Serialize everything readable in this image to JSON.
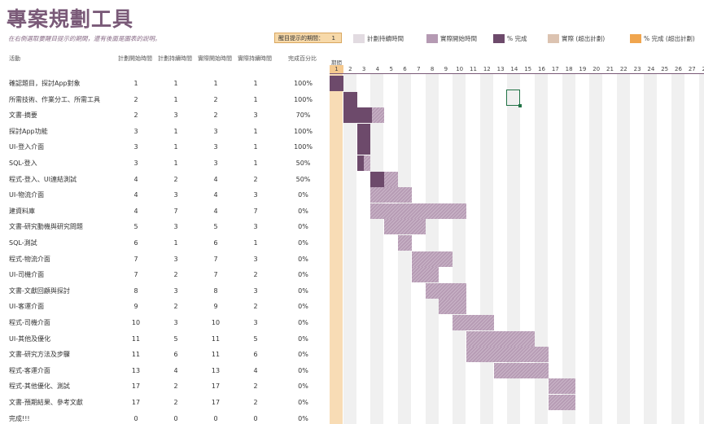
{
  "title": "專案規劃工具",
  "subtitle": "在右側選取要醒目提示的期間，還有後面是圖表的說明。",
  "period_highlight": {
    "label": "醒目提示的期間：",
    "value": "1"
  },
  "legend": [
    {
      "label": "計劃持續時間",
      "color": "#e2dbe1"
    },
    {
      "label": "實際開始時間",
      "color": "#b59ab3"
    },
    {
      "label": "% 完成",
      "color": "#6d4a6b"
    },
    {
      "label": "實際 (超出計劃)",
      "color": "#dcc3b1"
    },
    {
      "label": "% 完成 (超出計劃)",
      "color": "#f0a54e"
    }
  ],
  "columns": {
    "activity": "活動",
    "plan_start": "計劃開始時間",
    "plan_duration": "計劃持續時間",
    "actual_start": "實際開始時間",
    "actual_duration": "實際持續時間",
    "percent": "完成百分比",
    "periods": "期間"
  },
  "days": [
    "1",
    "2",
    "3",
    "4",
    "5",
    "6",
    "7",
    "8",
    "9",
    "10",
    "11",
    "12",
    "13",
    "14",
    "15",
    "16",
    "17",
    "18",
    "19",
    "20",
    "21",
    "22",
    "23",
    "24",
    "25",
    "26",
    "27",
    "28"
  ],
  "current_period": 1,
  "rows": [
    {
      "name": "確認題目，探討App對象",
      "plan_start": "1",
      "plan_duration": "1",
      "actual_start": "1",
      "actual_duration": "1",
      "percent": "100%",
      "pct_value": 1.0
    },
    {
      "name": "所需技術、作業分工、所需工具",
      "plan_start": "2",
      "plan_duration": "1",
      "actual_start": "2",
      "actual_duration": "1",
      "percent": "100%",
      "pct_value": 1.0
    },
    {
      "name": "文書-摘要",
      "plan_start": "2",
      "plan_duration": "3",
      "actual_start": "2",
      "actual_duration": "3",
      "percent": "70%",
      "pct_value": 0.7
    },
    {
      "name": "探討App功能",
      "plan_start": "3",
      "plan_duration": "1",
      "actual_start": "3",
      "actual_duration": "1",
      "percent": "100%",
      "pct_value": 1.0
    },
    {
      "name": "UI-登入介面",
      "plan_start": "3",
      "plan_duration": "1",
      "actual_start": "3",
      "actual_duration": "1",
      "percent": "100%",
      "pct_value": 1.0
    },
    {
      "name": "SQL-登入",
      "plan_start": "3",
      "plan_duration": "1",
      "actual_start": "3",
      "actual_duration": "1",
      "percent": "50%",
      "pct_value": 0.5
    },
    {
      "name": "程式-登入、UI連結測試",
      "plan_start": "4",
      "plan_duration": "2",
      "actual_start": "4",
      "actual_duration": "2",
      "percent": "50%",
      "pct_value": 0.5
    },
    {
      "name": "UI-物流介面",
      "plan_start": "4",
      "plan_duration": "3",
      "actual_start": "4",
      "actual_duration": "3",
      "percent": "0%",
      "pct_value": 0
    },
    {
      "name": "建資料庫",
      "plan_start": "4",
      "plan_duration": "7",
      "actual_start": "4",
      "actual_duration": "7",
      "percent": "0%",
      "pct_value": 0
    },
    {
      "name": "文書-研究動機與研究問題",
      "plan_start": "5",
      "plan_duration": "3",
      "actual_start": "5",
      "actual_duration": "3",
      "percent": "0%",
      "pct_value": 0
    },
    {
      "name": "SQL-測試",
      "plan_start": "6",
      "plan_duration": "1",
      "actual_start": "6",
      "actual_duration": "1",
      "percent": "0%",
      "pct_value": 0
    },
    {
      "name": "程式-物流介面",
      "plan_start": "7",
      "plan_duration": "3",
      "actual_start": "7",
      "actual_duration": "3",
      "percent": "0%",
      "pct_value": 0
    },
    {
      "name": "UI-司機介面",
      "plan_start": "7",
      "plan_duration": "2",
      "actual_start": "7",
      "actual_duration": "2",
      "percent": "0%",
      "pct_value": 0
    },
    {
      "name": "文書-文獻回顧與探討",
      "plan_start": "8",
      "plan_duration": "3",
      "actual_start": "8",
      "actual_duration": "3",
      "percent": "0%",
      "pct_value": 0
    },
    {
      "name": "UI-客運介面",
      "plan_start": "9",
      "plan_duration": "2",
      "actual_start": "9",
      "actual_duration": "2",
      "percent": "0%",
      "pct_value": 0
    },
    {
      "name": "程式-司機介面",
      "plan_start": "10",
      "plan_duration": "3",
      "actual_start": "10",
      "actual_duration": "3",
      "percent": "0%",
      "pct_value": 0
    },
    {
      "name": "UI-其他及優化",
      "plan_start": "11",
      "plan_duration": "5",
      "actual_start": "11",
      "actual_duration": "5",
      "percent": "0%",
      "pct_value": 0
    },
    {
      "name": "文書-研究方法及步驟",
      "plan_start": "11",
      "plan_duration": "6",
      "actual_start": "11",
      "actual_duration": "6",
      "percent": "0%",
      "pct_value": 0
    },
    {
      "name": "程式-客運介面",
      "plan_start": "13",
      "plan_duration": "4",
      "actual_start": "13",
      "actual_duration": "4",
      "percent": "0%",
      "pct_value": 0
    },
    {
      "name": "程式-其他優化、測試",
      "plan_start": "17",
      "plan_duration": "2",
      "actual_start": "17",
      "actual_duration": "2",
      "percent": "0%",
      "pct_value": 0
    },
    {
      "name": "文書-預期結果、參考文獻",
      "plan_start": "17",
      "plan_duration": "2",
      "actual_start": "17",
      "actual_duration": "2",
      "percent": "0%",
      "pct_value": 0
    },
    {
      "name": "完成!!!",
      "plan_start": "0",
      "plan_duration": "0",
      "actual_start": "0",
      "actual_duration": "0",
      "percent": "0%",
      "pct_value": 0
    }
  ]
}
